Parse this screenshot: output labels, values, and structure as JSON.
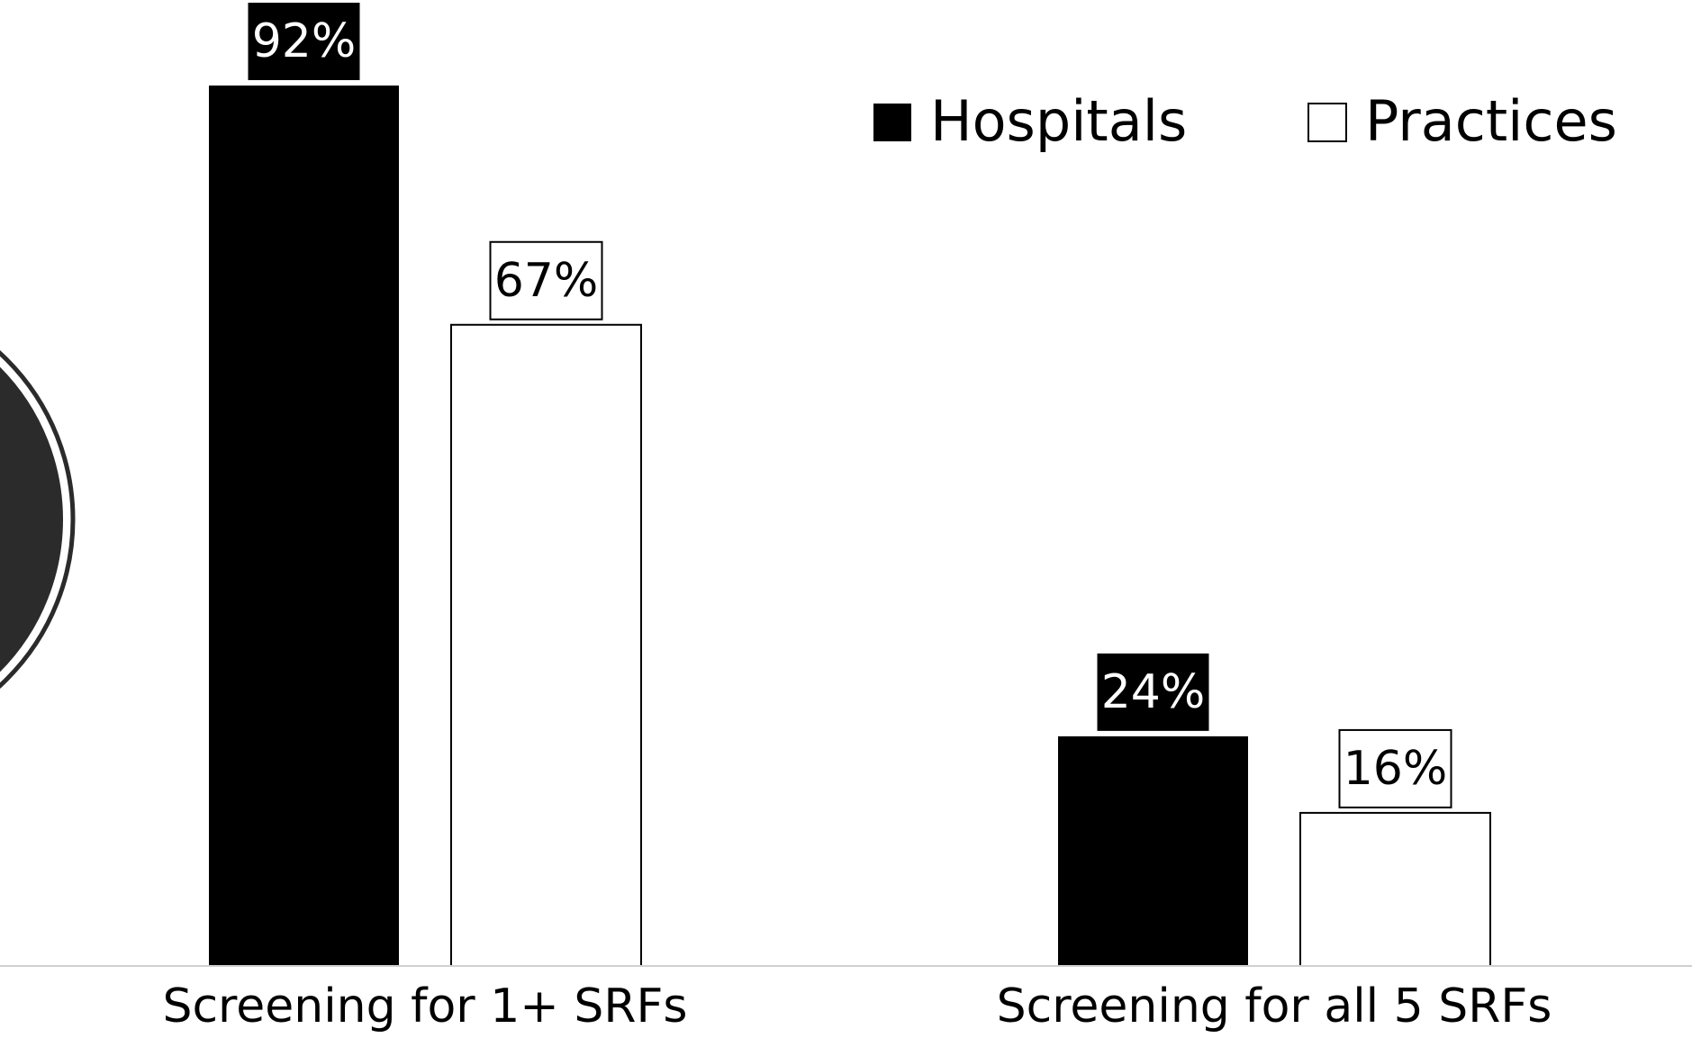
{
  "chart_data": {
    "type": "bar",
    "categories": [
      "Screening for 1+ SRFs",
      "Screening for all 5 SRFs"
    ],
    "series": [
      {
        "name": "Hospitals",
        "values": [
          92,
          24
        ],
        "labels": [
          "92%",
          "24%"
        ],
        "color": "#000000"
      },
      {
        "name": "Practices",
        "values": [
          67,
          16
        ],
        "labels": [
          "67%",
          "16%"
        ],
        "color": "#ffffff"
      }
    ],
    "unit": "%",
    "ylim": [
      0,
      100
    ],
    "grid": false,
    "legend_position": "top-right",
    "title": "",
    "xlabel": "",
    "ylabel": ""
  }
}
